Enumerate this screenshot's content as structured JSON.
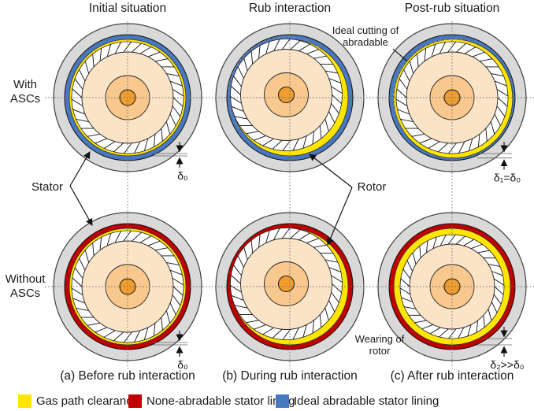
{
  "headers": [
    {
      "label": "Initial situation"
    },
    {
      "label": "Rub interaction"
    },
    {
      "label": "Post-rub situation"
    }
  ],
  "row_labels": [
    {
      "label": "With\nASCs"
    },
    {
      "label": "Without\nASCs"
    }
  ],
  "captions": [
    {
      "label": "(a) Before rub interaction"
    },
    {
      "label": "(b) During rub interaction"
    },
    {
      "label": "(c) After rub interaction"
    }
  ],
  "callouts": {
    "stator": "Stator",
    "rotor": "Rotor",
    "ideal_cutting": "Ideal cutting of\nabradable",
    "wearing_of_rotor": "Wearing of\nrotor"
  },
  "dimensions": {
    "d0_top": "δ₀",
    "d1": "δ₁=δ₀",
    "d0_bottom": "δ₀",
    "d2": "δ₂>>δ₀"
  },
  "legend": [
    {
      "name": "gas-path-clearance",
      "label": "Gas path clearance",
      "color": "#ffe500"
    },
    {
      "name": "none-abradable-stator-lining",
      "label": "None-abradable stator lining",
      "color": "#c00000"
    },
    {
      "name": "ideal-abradable-stator-lining",
      "label": "Ideal abradable stator lining",
      "color": "#4878c0"
    }
  ],
  "colors": {
    "stator_gray": "#d9d9d9",
    "abradable_blue": "#4878c0",
    "non_abradable_red": "#c00000",
    "clearance_yellow": "#ffe500",
    "blade_white": "#ffffff",
    "rotor_disk": "#fbe4c6",
    "hub_mid": "#f8c88e",
    "hub_center": "#f09d30",
    "outline": "#1a1a1a"
  },
  "figure": {
    "outer_r": 94,
    "lining_outer_r": 80,
    "lining_inner_r": 74,
    "blade_count": 34,
    "blade_slant_deg": 9,
    "hub_mid_r": 28,
    "hub_center_r": 10,
    "diagrams": [
      {
        "name": "with-ascs-initial",
        "lining": "blue",
        "rotor_dx": 0,
        "rotor_dy": 0,
        "blade_tip_r": 71,
        "disk_r": 58,
        "yellow_r": 74,
        "yellow_dx": 0,
        "yellow_dy": 0,
        "cut_arc": null,
        "dim": "d0_top"
      },
      {
        "name": "with-ascs-rub",
        "lining": "blue",
        "rotor_dx": -4.5,
        "rotor_dy": -3.5,
        "blade_tip_r": 71,
        "disk_r": 58,
        "yellow_r": 74,
        "yellow_dx": 0,
        "yellow_dy": 0,
        "cut_arc": {
          "dx": -4.5,
          "dy": -3.5,
          "r": 73.5,
          "start_deg": 55,
          "end_deg": 215
        },
        "dim": null
      },
      {
        "name": "with-ascs-post",
        "lining": "blue",
        "rotor_dx": 0,
        "rotor_dy": 0,
        "blade_tip_r": 71,
        "disk_r": 58,
        "yellow_r": 75.5,
        "yellow_dx": 1.4,
        "yellow_dy": 1.2,
        "cut_arc": {
          "dx": 0,
          "dy": 0,
          "r": 74.2,
          "start_deg": 80,
          "end_deg": 215
        },
        "dim": "d1"
      },
      {
        "name": "without-ascs-initial",
        "lining": "red",
        "rotor_dx": 0,
        "rotor_dy": 0,
        "blade_tip_r": 71,
        "disk_r": 58,
        "yellow_r": 74,
        "yellow_dx": 0,
        "yellow_dy": 0,
        "cut_arc": null,
        "dim": "d0_bottom"
      },
      {
        "name": "without-ascs-rub",
        "lining": "red",
        "rotor_dx": -4.5,
        "rotor_dy": -3.5,
        "blade_tip_r": 71,
        "disk_r": 58,
        "yellow_r": 74,
        "yellow_dx": 0,
        "yellow_dy": 0,
        "cut_arc": null,
        "dim": null
      },
      {
        "name": "without-ascs-post",
        "lining": "red",
        "rotor_dx": 0,
        "rotor_dy": 0,
        "blade_tip_r": 66,
        "disk_r": 54,
        "yellow_r": 74,
        "yellow_dx": 0,
        "yellow_dy": 0,
        "cut_arc": null,
        "dim": "d2"
      }
    ]
  }
}
